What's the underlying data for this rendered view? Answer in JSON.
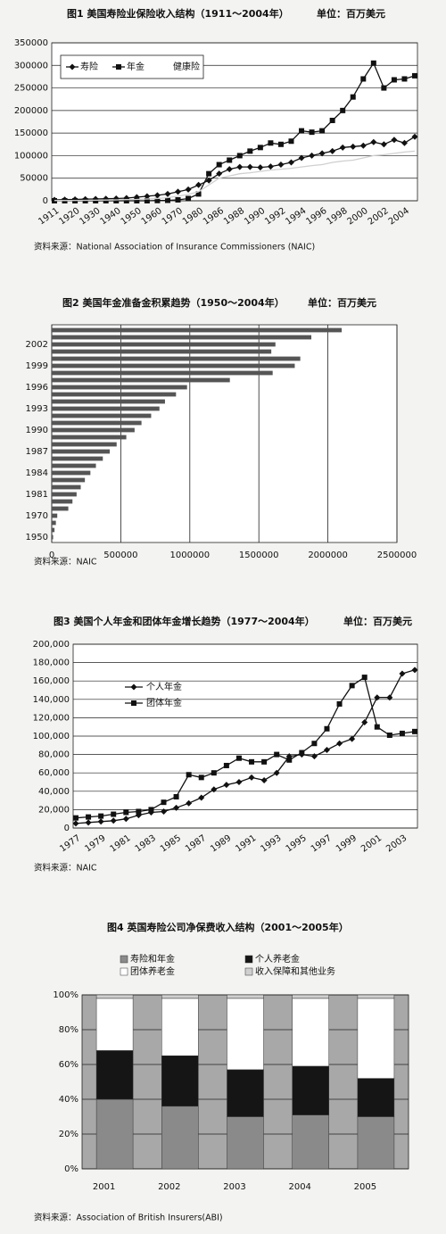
{
  "chart_data": [
    {
      "type": "line",
      "title": "图1  美国寿险业保险收入结构（1911～2004年）",
      "unit": "单位：百万美元",
      "source": "资料来源：National Association of Insurance Commissioners (NAIC)",
      "categories": [
        "1911",
        null,
        "1920",
        null,
        "1930",
        null,
        "1940",
        null,
        "1950",
        null,
        "1960",
        null,
        "1970",
        null,
        "1980",
        null,
        "1986",
        null,
        "1988",
        null,
        "1990",
        null,
        "1992",
        null,
        "1994",
        null,
        "1996",
        null,
        "1998",
        null,
        "2000",
        null,
        "2002",
        null,
        "2004",
        null
      ],
      "series": [
        {
          "name": "寿险",
          "color": "#111111",
          "marker": "diamond",
          "values": [
            2000,
            2500,
            3000,
            3500,
            4000,
            4500,
            5000,
            6000,
            8000,
            10000,
            12000,
            15000,
            20000,
            25000,
            35000,
            45000,
            60000,
            70000,
            75000,
            75000,
            74000,
            76000,
            80000,
            85000,
            95000,
            100000,
            105000,
            110000,
            118000,
            120000,
            122000,
            130000,
            125000,
            135000,
            128000,
            142000
          ]
        },
        {
          "name": "年金",
          "color": "#111111",
          "marker": "square",
          "values": [
            0,
            0,
            0,
            0,
            0,
            0,
            0,
            0,
            0,
            0,
            500,
            1000,
            2000,
            5000,
            15000,
            60000,
            80000,
            90000,
            100000,
            110000,
            118000,
            128000,
            125000,
            132000,
            155000,
            152000,
            155000,
            178000,
            200000,
            230000,
            270000,
            305000,
            250000,
            268000,
            270000,
            277000
          ]
        },
        {
          "name": "健康险",
          "color": "#d0d0d0",
          "marker": "none",
          "values": [
            500,
            600,
            800,
            1000,
            1200,
            1500,
            2000,
            2500,
            3000,
            4000,
            5000,
            7000,
            10000,
            14000,
            20000,
            35000,
            50000,
            55000,
            60000,
            62000,
            65000,
            68000,
            70000,
            72000,
            75000,
            78000,
            80000,
            85000,
            88000,
            90000,
            95000,
            100000,
            102000,
            105000,
            108000,
            110000
          ]
        }
      ],
      "ylim": [
        0,
        350000
      ],
      "yticks": [
        0,
        50000,
        100000,
        150000,
        200000,
        250000,
        300000,
        350000
      ],
      "grid": true,
      "legend": "upper left"
    },
    {
      "type": "bar",
      "orientation": "horizontal",
      "title": "图2  美国年金准备金积累趋势（1950～2004年）",
      "unit": "单位：百万美元",
      "source": "资料来源：NAIC",
      "categories": [
        "1950",
        null,
        null,
        "1970",
        null,
        null,
        "1981",
        null,
        null,
        "1984",
        null,
        null,
        "1987",
        null,
        null,
        "1990",
        null,
        null,
        "1993",
        null,
        null,
        "1996",
        null,
        null,
        "1999",
        null,
        null,
        "2002",
        null,
        null
      ],
      "values": [
        10000,
        20000,
        30000,
        40000,
        120000,
        150000,
        180000,
        210000,
        240000,
        280000,
        320000,
        370000,
        420000,
        470000,
        540000,
        600000,
        650000,
        720000,
        780000,
        820000,
        900000,
        980000,
        1290000,
        1600000,
        1760000,
        1800000,
        1590000,
        1620000,
        1880000,
        2100000
      ],
      "color": "#555555",
      "xlim": [
        0,
        2500000
      ],
      "xticks": [
        0,
        500000,
        1000000,
        1500000,
        2000000,
        2500000
      ],
      "grid": true
    },
    {
      "type": "line",
      "title": "图3  美国个人年金和团体年金增长趋势（1977～2004年）",
      "unit": "单位：百万美元",
      "source": "资料来源：NAIC",
      "categories": [
        "1977",
        null,
        "1979",
        null,
        "1981",
        null,
        "1983",
        null,
        "1985",
        null,
        "1987",
        null,
        "1989",
        null,
        "1991",
        null,
        "1993",
        null,
        "1995",
        null,
        "1997",
        null,
        "1999",
        null,
        "2001",
        null,
        "2003",
        null
      ],
      "series": [
        {
          "name": "个人年金",
          "color": "#111111",
          "marker": "diamond",
          "values": [
            5000,
            6000,
            7000,
            8000,
            10000,
            14000,
            17000,
            18000,
            22000,
            27000,
            33000,
            42000,
            47000,
            50000,
            55000,
            52000,
            60000,
            78000,
            80000,
            78000,
            85000,
            92000,
            97000,
            115000,
            142000,
            142000,
            168000,
            172000
          ]
        },
        {
          "name": "团体年金",
          "color": "#111111",
          "marker": "square",
          "values": [
            11000,
            12000,
            13000,
            15000,
            17000,
            18000,
            20000,
            28000,
            34000,
            58000,
            55000,
            60000,
            68000,
            76000,
            72000,
            72000,
            80000,
            74000,
            82000,
            92000,
            108000,
            135000,
            155000,
            164000,
            110000,
            101000,
            103000,
            105000
          ]
        }
      ],
      "ylim": [
        0,
        200000
      ],
      "yticks": [
        0,
        {
          "value": 20000,
          "label": "20,000"
        },
        {
          "value": 40000,
          "label": "40,000"
        },
        {
          "value": 60000,
          "label": "60,000"
        },
        {
          "value": 80000,
          "label": "80,000"
        },
        {
          "value": 100000,
          "label": "100,000"
        },
        {
          "value": 120000,
          "label": "120,000"
        },
        {
          "value": 140000,
          "label": "140,000"
        },
        {
          "value": 160000,
          "label": "160,000"
        },
        {
          "value": 180000,
          "label": "180,000"
        },
        {
          "value": 200000,
          "label": "200,000"
        }
      ],
      "grid": true,
      "legend": "upper left"
    },
    {
      "type": "bar",
      "stacked": true,
      "title": "图4  英国寿险公司净保费收入结构（2001～2005年）",
      "source": "资料来源：Association of British Insurers(ABI)",
      "categories": [
        "2001",
        "2002",
        "2003",
        "2004",
        "2005"
      ],
      "series": [
        {
          "name": "寿险和年金",
          "color": "#8a8a8a",
          "values": [
            40,
            36,
            30,
            31,
            30
          ]
        },
        {
          "name": "个人养老金",
          "color": "#151515",
          "values": [
            28,
            29,
            27,
            28,
            22
          ]
        },
        {
          "name": "团体养老金",
          "color": "#ffffff",
          "values": [
            30,
            33,
            41,
            39,
            46
          ]
        },
        {
          "name": "收入保障和其他业务",
          "color": "#cfcfcf",
          "values": [
            2,
            2,
            2,
            2,
            2
          ]
        }
      ],
      "ylim": [
        0,
        100
      ],
      "yticks": [
        {
          "value": 0,
          "label": "0%"
        },
        {
          "value": 20,
          "label": "20%"
        },
        {
          "value": 40,
          "label": "40%"
        },
        {
          "value": 60,
          "label": "60%"
        },
        {
          "value": 80,
          "label": "80%"
        },
        {
          "value": 100,
          "label": "100%"
        }
      ],
      "grid": true,
      "legend": "top"
    }
  ]
}
